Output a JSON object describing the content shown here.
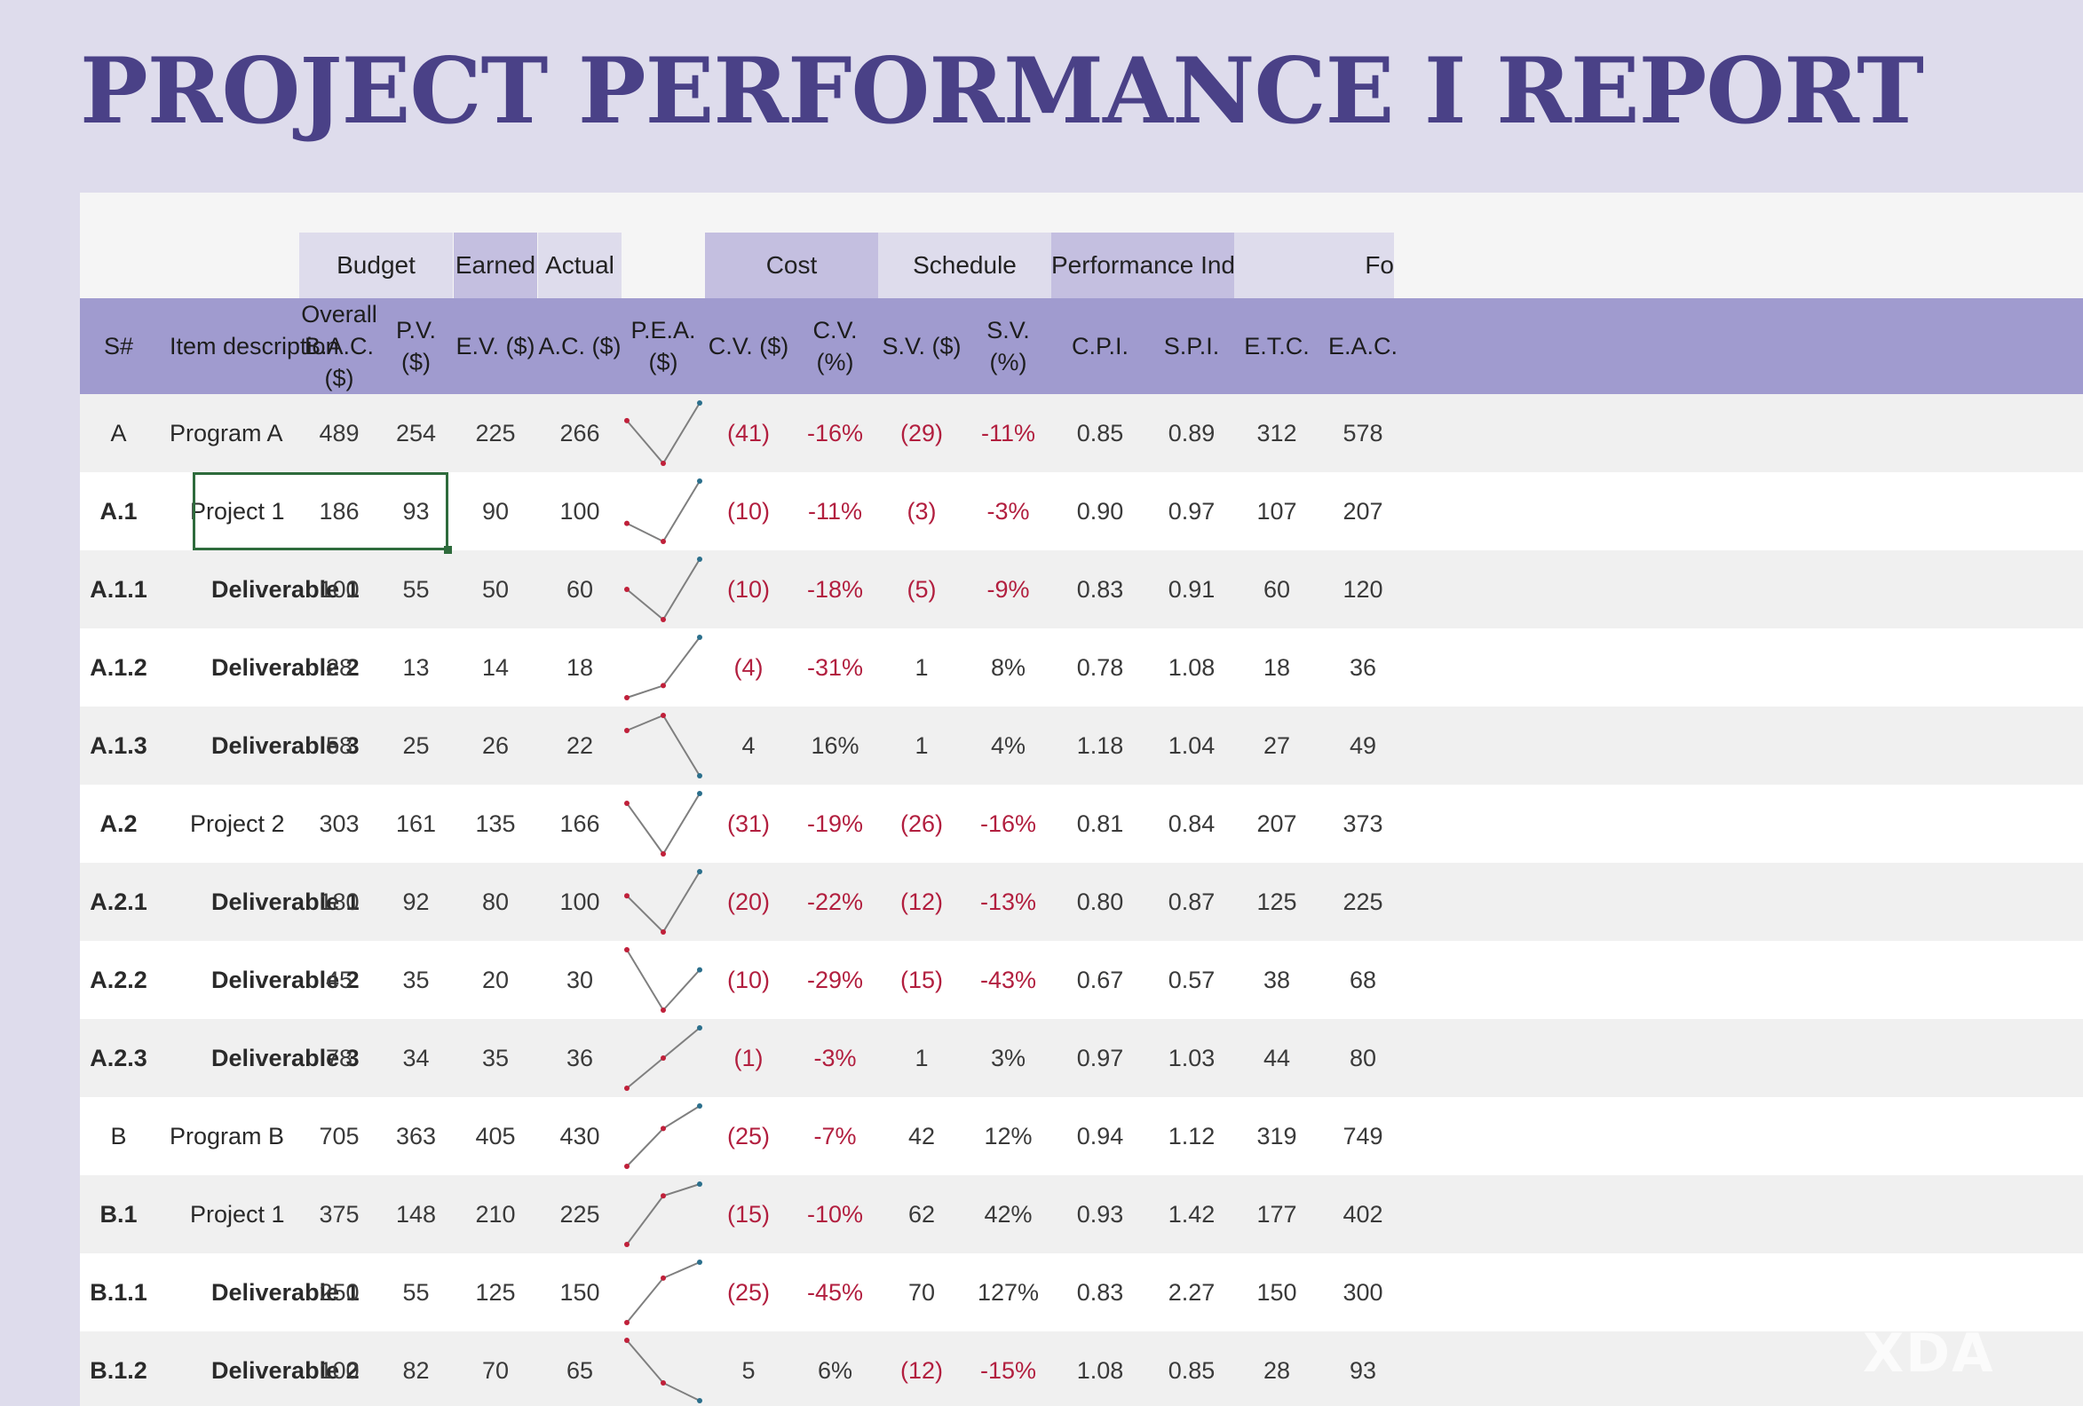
{
  "title": "PROJECT PERFORMANCE  I  REPORT",
  "groups": {
    "budget": "Budget",
    "earned": "Earned",
    "actual": "Actual",
    "cost": "Cost",
    "schedule": "Schedule",
    "performance_index": "Performance Index",
    "forecast_partial": "Fo"
  },
  "columns": {
    "sn": "S#",
    "item": "Item description",
    "bac": "Overall\nB.A.C. ($)",
    "pv": "P.V. ($)",
    "ev": "E.V. ($)",
    "ac": "A.C. ($)",
    "pea": "P.E.A. ($)",
    "cv": "C.V. ($)",
    "cvp": "C.V. (%)",
    "sv": "S.V. ($)",
    "svp": "S.V. (%)",
    "cpi": "C.P.I.",
    "spi": "S.P.I.",
    "etc": "E.T.C.",
    "eac": "E.A.C."
  },
  "rows": [
    {
      "sn": "A",
      "item": "Program A",
      "level": 0,
      "bac": "489",
      "pv": "254",
      "ev": "225",
      "ac": "266",
      "cv": "(41)",
      "cvp": "-16%",
      "sv": "(29)",
      "svp": "-11%",
      "cpi": "0.85",
      "spi": "0.89",
      "etc": "312",
      "eac": "578"
    },
    {
      "sn": "A.1",
      "item": "Project 1",
      "level": 1,
      "bac": "186",
      "pv": "93",
      "ev": "90",
      "ac": "100",
      "cv": "(10)",
      "cvp": "-11%",
      "sv": "(3)",
      "svp": "-3%",
      "cpi": "0.90",
      "spi": "0.97",
      "etc": "107",
      "eac": "207"
    },
    {
      "sn": "A.1.1",
      "item": "Deliverable 1",
      "level": 2,
      "bac": "100",
      "pv": "55",
      "ev": "50",
      "ac": "60",
      "cv": "(10)",
      "cvp": "-18%",
      "sv": "(5)",
      "svp": "-9%",
      "cpi": "0.83",
      "spi": "0.91",
      "etc": "60",
      "eac": "120"
    },
    {
      "sn": "A.1.2",
      "item": "Deliverable 2",
      "level": 2,
      "bac": "28",
      "pv": "13",
      "ev": "14",
      "ac": "18",
      "cv": "(4)",
      "cvp": "-31%",
      "sv": "1",
      "svp": "8%",
      "cpi": "0.78",
      "spi": "1.08",
      "etc": "18",
      "eac": "36"
    },
    {
      "sn": "A.1.3",
      "item": "Deliverable 3",
      "level": 2,
      "bac": "58",
      "pv": "25",
      "ev": "26",
      "ac": "22",
      "cv": "4",
      "cvp": "16%",
      "sv": "1",
      "svp": "4%",
      "cpi": "1.18",
      "spi": "1.04",
      "etc": "27",
      "eac": "49"
    },
    {
      "sn": "A.2",
      "item": "Project 2",
      "level": 1,
      "bac": "303",
      "pv": "161",
      "ev": "135",
      "ac": "166",
      "cv": "(31)",
      "cvp": "-19%",
      "sv": "(26)",
      "svp": "-16%",
      "cpi": "0.81",
      "spi": "0.84",
      "etc": "207",
      "eac": "373"
    },
    {
      "sn": "A.2.1",
      "item": "Deliverable 1",
      "level": 2,
      "bac": "180",
      "pv": "92",
      "ev": "80",
      "ac": "100",
      "cv": "(20)",
      "cvp": "-22%",
      "sv": "(12)",
      "svp": "-13%",
      "cpi": "0.80",
      "spi": "0.87",
      "etc": "125",
      "eac": "225"
    },
    {
      "sn": "A.2.2",
      "item": "Deliverable 2",
      "level": 2,
      "bac": "45",
      "pv": "35",
      "ev": "20",
      "ac": "30",
      "cv": "(10)",
      "cvp": "-29%",
      "sv": "(15)",
      "svp": "-43%",
      "cpi": "0.67",
      "spi": "0.57",
      "etc": "38",
      "eac": "68"
    },
    {
      "sn": "A.2.3",
      "item": "Deliverable 3",
      "level": 2,
      "bac": "78",
      "pv": "34",
      "ev": "35",
      "ac": "36",
      "cv": "(1)",
      "cvp": "-3%",
      "sv": "1",
      "svp": "3%",
      "cpi": "0.97",
      "spi": "1.03",
      "etc": "44",
      "eac": "80"
    },
    {
      "sn": "B",
      "item": "Program B",
      "level": 0,
      "bac": "705",
      "pv": "363",
      "ev": "405",
      "ac": "430",
      "cv": "(25)",
      "cvp": "-7%",
      "sv": "42",
      "svp": "12%",
      "cpi": "0.94",
      "spi": "1.12",
      "etc": "319",
      "eac": "749"
    },
    {
      "sn": "B.1",
      "item": "Project 1",
      "level": 1,
      "bac": "375",
      "pv": "148",
      "ev": "210",
      "ac": "225",
      "cv": "(15)",
      "cvp": "-10%",
      "sv": "62",
      "svp": "42%",
      "cpi": "0.93",
      "spi": "1.42",
      "etc": "177",
      "eac": "402"
    },
    {
      "sn": "B.1.1",
      "item": "Deliverable 1",
      "level": 2,
      "bac": "250",
      "pv": "55",
      "ev": "125",
      "ac": "150",
      "cv": "(25)",
      "cvp": "-45%",
      "sv": "70",
      "svp": "127%",
      "cpi": "0.83",
      "spi": "2.27",
      "etc": "150",
      "eac": "300"
    },
    {
      "sn": "B.1.2",
      "item": "Deliverable 2",
      "level": 2,
      "bac": "100",
      "pv": "82",
      "ev": "70",
      "ac": "65",
      "cv": "5",
      "cvp": "6%",
      "sv": "(12)",
      "svp": "-15%",
      "cpi": "1.08",
      "spi": "0.85",
      "etc": "28",
      "eac": "93"
    }
  ],
  "colors": {
    "title": "#4a4187",
    "header": "#a09bcf",
    "group_dark": "#c4bfe0",
    "group_light": "#dedcec",
    "negative": "#b21f3f",
    "spark_line": "#7f7f7f",
    "spark_marker": "#c0203a",
    "spark_marker_end": "#2b6f8c"
  },
  "watermark": "XDA"
}
